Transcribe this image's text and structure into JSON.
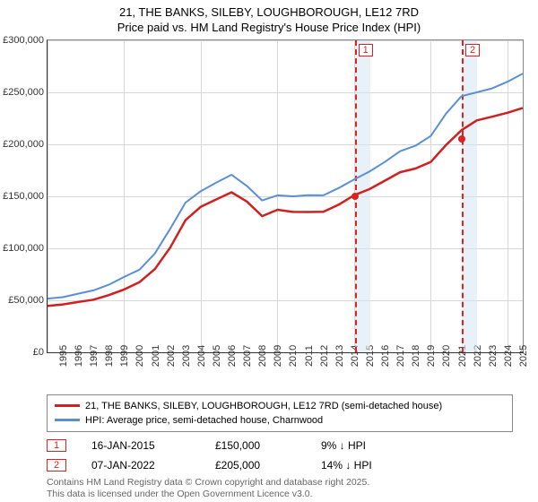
{
  "title_line1": "21, THE BANKS, SILEBY, LOUGHBOROUGH, LE12 7RD",
  "title_line2": "Price paid vs. HM Land Registry's House Price Index (HPI)",
  "chart": {
    "type": "line",
    "background_color": "#ffffff",
    "grid_color": "#d7d7d7",
    "shade_color": "#d6e3f3",
    "x": {
      "min": 1995,
      "max": 2026,
      "ticks": [
        1995,
        1996,
        1997,
        1998,
        1999,
        2000,
        2001,
        2002,
        2003,
        2004,
        2005,
        2006,
        2007,
        2008,
        2009,
        2010,
        2011,
        2012,
        2013,
        2014,
        2015,
        2016,
        2017,
        2018,
        2019,
        2020,
        2021,
        2022,
        2023,
        2024,
        2025
      ],
      "label_fontsize": 11
    },
    "y": {
      "min": 0,
      "max": 300000,
      "ticks": [
        0,
        50000,
        100000,
        150000,
        200000,
        250000,
        300000
      ],
      "tick_labels": [
        "£0",
        "£50,000",
        "£100,000",
        "£150,000",
        "£200,000",
        "£250,000",
        "£300,000"
      ],
      "label_fontsize": 11
    },
    "shaded_ranges": [
      {
        "from": 2015.04,
        "to": 2016.04
      },
      {
        "from": 2022.02,
        "to": 2023.02
      }
    ],
    "event_dashes": [
      {
        "x": 2015.04,
        "label": "1"
      },
      {
        "x": 2022.02,
        "label": "2"
      }
    ],
    "markers": [
      {
        "x": 2015.04,
        "y": 150000
      },
      {
        "x": 2022.02,
        "y": 205000
      }
    ],
    "series": [
      {
        "name": "21, THE BANKS, SILEBY, LOUGHBOROUGH, LE12 7RD (semi-detached house)",
        "color": "#d21f1f",
        "line_width": 2.5,
        "data": [
          [
            1995,
            45000
          ],
          [
            1996,
            46000
          ],
          [
            1997,
            48000
          ],
          [
            1998,
            51000
          ],
          [
            1999,
            55000
          ],
          [
            2000,
            60000
          ],
          [
            2001,
            68000
          ],
          [
            2002,
            80000
          ],
          [
            2003,
            100000
          ],
          [
            2004,
            128000
          ],
          [
            2005,
            140000
          ],
          [
            2006,
            146000
          ],
          [
            2007,
            155000
          ],
          [
            2008,
            145000
          ],
          [
            2009,
            130000
          ],
          [
            2010,
            138000
          ],
          [
            2011,
            135000
          ],
          [
            2012,
            134000
          ],
          [
            2013,
            136000
          ],
          [
            2014,
            142000
          ],
          [
            2015,
            150000
          ],
          [
            2016,
            158000
          ],
          [
            2017,
            165000
          ],
          [
            2018,
            172000
          ],
          [
            2019,
            178000
          ],
          [
            2020,
            183000
          ],
          [
            2021,
            198000
          ],
          [
            2022,
            215000
          ],
          [
            2023,
            223000
          ],
          [
            2024,
            225000
          ],
          [
            2025,
            232000
          ],
          [
            2026,
            235000
          ]
        ]
      },
      {
        "name": "HPI: Average price, semi-detached house, Charnwood",
        "color": "#5a8fd6",
        "line_width": 2,
        "data": [
          [
            1995,
            52000
          ],
          [
            1996,
            53000
          ],
          [
            1997,
            56000
          ],
          [
            1998,
            60000
          ],
          [
            1999,
            65000
          ],
          [
            2000,
            72000
          ],
          [
            2001,
            80000
          ],
          [
            2002,
            95000
          ],
          [
            2003,
            118000
          ],
          [
            2004,
            145000
          ],
          [
            2005,
            155000
          ],
          [
            2006,
            162000
          ],
          [
            2007,
            172000
          ],
          [
            2008,
            160000
          ],
          [
            2009,
            145000
          ],
          [
            2010,
            152000
          ],
          [
            2011,
            150000
          ],
          [
            2012,
            150000
          ],
          [
            2013,
            152000
          ],
          [
            2014,
            158000
          ],
          [
            2015,
            165000
          ],
          [
            2016,
            175000
          ],
          [
            2017,
            183000
          ],
          [
            2018,
            192000
          ],
          [
            2019,
            200000
          ],
          [
            2020,
            208000
          ],
          [
            2021,
            228000
          ],
          [
            2022,
            248000
          ],
          [
            2023,
            250000
          ],
          [
            2024,
            252000
          ],
          [
            2025,
            262000
          ],
          [
            2026,
            268000
          ]
        ]
      }
    ]
  },
  "legend_items": [
    {
      "color": "#d21f1f",
      "label": "21, THE BANKS, SILEBY, LOUGHBOROUGH, LE12 7RD (semi-detached house)"
    },
    {
      "color": "#5a8fd6",
      "label": "HPI: Average price, semi-detached house, Charnwood"
    }
  ],
  "events": [
    {
      "n": "1",
      "date": "16-JAN-2015",
      "price": "£150,000",
      "delta": "9% ↓ HPI"
    },
    {
      "n": "2",
      "date": "07-JAN-2022",
      "price": "£205,000",
      "delta": "14% ↓ HPI"
    }
  ],
  "fineprint_line1": "Contains HM Land Registry data © Crown copyright and database right 2025.",
  "fineprint_line2": "This data is licensed under the Open Government Licence v3.0."
}
